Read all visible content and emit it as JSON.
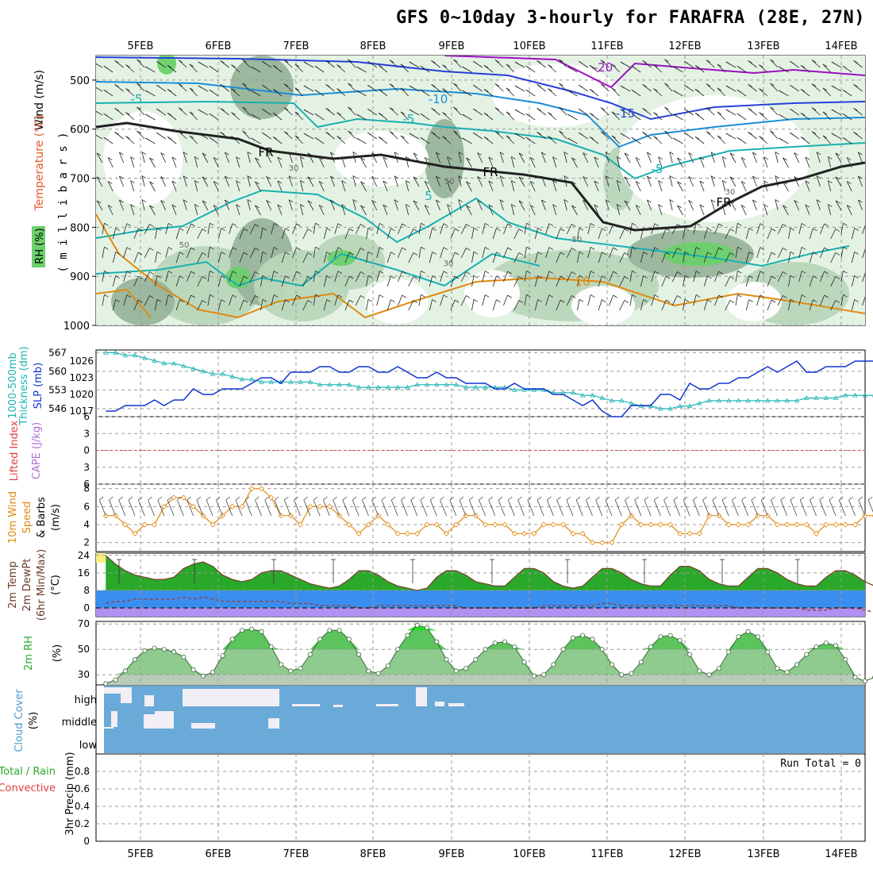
{
  "title": "GFS 0~10day 3-hourly for FARAFRA (28E, 27N)",
  "days": [
    "5FEB",
    "6FEB",
    "7FEB",
    "8FEB",
    "9FEB",
    "10FEB",
    "11FEB",
    "12FEB",
    "13FEB",
    "14FEB"
  ],
  "colors": {
    "rh_light": "#e4f2e4",
    "rh_mid": "#b9d6b9",
    "rh_grey": "#98b49a",
    "rh_green": "#6cd06c",
    "temp_cyan": "#19b0b0",
    "temp_blue": "#2840d8",
    "temp_purple": "#9a10c0",
    "temp_orange": "#e08a10",
    "slp": "#1034d0",
    "thickness": "#20b4b4",
    "wind10": "#e08a10",
    "temp_green": "#2aa82a",
    "temp_blue_band": "#3a8ef0",
    "temp_purple_band": "#b090f0",
    "cloud": "#6aaad8",
    "cloud_gap": "#f1eef6"
  },
  "labels": {
    "upper": [
      "Wind (m/s)",
      "Temperature (°C)",
      "RH (%)",
      "( m i l l i b a r s )"
    ],
    "thickness": [
      "1000-500mb",
      "Thickness (dm)",
      "SLP (mb)"
    ],
    "cape": [
      "Lifted Index",
      "CAPE (J/kg)"
    ],
    "wind10": [
      "10m Wind",
      "Speed",
      "& Barbs",
      "(m/s)"
    ],
    "temp2m": [
      "2m Temp",
      "2m DewPt",
      "(6hr Min/Max)",
      "(°C)"
    ],
    "rh2m": [
      "2m RH",
      "(%)"
    ],
    "cloud": [
      "Cloud Cover",
      "(%)"
    ],
    "precip": [
      "Total / Rain",
      "Convective",
      "3hr Precip (mm)"
    ]
  },
  "run_total": "Run Total = 0",
  "chart_data": [
    {
      "type": "contour-crosssection",
      "title": "Wind / Temperature / RH",
      "ylabel": "millibars",
      "yticks": [
        500,
        600,
        700,
        800,
        900,
        1000
      ],
      "ylim": [
        450,
        1000
      ],
      "temperature_contour_labels": [
        "-20",
        "-15",
        "-10",
        "-5",
        "5",
        "10",
        "FR"
      ],
      "rh_contour_labels": [
        "30",
        "50"
      ]
    },
    {
      "type": "line",
      "title": "1000-500mb Thickness / SLP",
      "thickness_ticks": [
        546,
        553,
        560,
        567
      ],
      "slp_ticks": [
        1017,
        1020,
        1023,
        1026
      ],
      "series": [
        {
          "name": "SLP (mb)",
          "range": [
            1016,
            1028
          ],
          "values": [
            1017,
            1017,
            1018,
            1018,
            1018,
            1019,
            1018,
            1019,
            1019,
            1021,
            1020,
            1020,
            1021,
            1021,
            1021,
            1022,
            1023,
            1023,
            1022,
            1024,
            1024,
            1024,
            1025,
            1025,
            1024,
            1024,
            1025,
            1025,
            1024,
            1024,
            1025,
            1024,
            1023,
            1023,
            1024,
            1023,
            1023,
            1022,
            1022,
            1022,
            1021,
            1021,
            1022,
            1021,
            1021,
            1021,
            1020,
            1020,
            1019,
            1018,
            1019,
            1017,
            1016,
            1016,
            1018,
            1018,
            1018,
            1020,
            1020,
            1019,
            1022,
            1021,
            1021,
            1022,
            1022,
            1023,
            1023,
            1024,
            1025,
            1024,
            1025,
            1026,
            1024,
            1024,
            1025,
            1025,
            1025,
            1026,
            1026,
            1026,
            1027,
            1027,
            1025,
            1025,
            1026
          ]
        },
        {
          "name": "1000-500mb Thickness (dm)",
          "range": [
            543,
            568
          ],
          "values": [
            567,
            567,
            566,
            566,
            565,
            564,
            563,
            563,
            562,
            561,
            560,
            559,
            559,
            558,
            557,
            557,
            556,
            556,
            556,
            556,
            556,
            556,
            555,
            555,
            555,
            555,
            554,
            554,
            554,
            554,
            554,
            554,
            555,
            555,
            555,
            555,
            555,
            554,
            554,
            554,
            554,
            554,
            553,
            553,
            553,
            553,
            552,
            552,
            552,
            551,
            551,
            550,
            549,
            549,
            548,
            547,
            547,
            546,
            546,
            547,
            547,
            548,
            549,
            549,
            549,
            549,
            549,
            549,
            549,
            549,
            549,
            549,
            550,
            550,
            550,
            550,
            551,
            551,
            551,
            551,
            552,
            552,
            552,
            552,
            552
          ]
        }
      ]
    },
    {
      "type": "line",
      "title": "Lifted Index / CAPE",
      "yticks": [
        -6,
        -3,
        0,
        3,
        6
      ],
      "ytick_labels": [
        "6",
        "3",
        "0",
        "3",
        "6"
      ],
      "values": []
    },
    {
      "type": "line",
      "title": "10m Wind Speed (m/s)",
      "yticks": [
        2,
        4,
        6,
        8
      ],
      "ylim": [
        1,
        8.5
      ],
      "values": [
        5,
        5,
        4,
        3,
        4,
        4,
        6,
        7,
        7,
        6,
        5,
        4,
        5,
        6,
        6,
        8,
        8,
        7,
        5,
        5,
        4,
        6,
        6,
        6,
        5,
        4,
        3,
        4,
        5,
        4,
        3,
        3,
        3,
        4,
        4,
        3,
        4,
        5,
        5,
        4,
        4,
        4,
        3,
        3,
        3,
        4,
        4,
        4,
        3,
        3,
        2,
        2,
        2,
        4,
        5,
        4,
        4,
        4,
        4,
        3,
        3,
        3,
        5,
        5,
        4,
        4,
        4,
        5,
        5,
        4,
        4,
        4,
        4,
        3,
        4,
        4,
        4,
        4,
        5,
        5,
        4,
        4,
        4,
        4,
        3
      ]
    },
    {
      "type": "area",
      "title": "2m Temp / 2m DewPt (6hr Min/Max)",
      "yticks": [
        0,
        8,
        16,
        24
      ],
      "ylim": [
        -4,
        25
      ],
      "series": [
        {
          "name": "2m Temp (°C)",
          "values": [
            24,
            20,
            17,
            15,
            14,
            13,
            13,
            14,
            18,
            20,
            21,
            19,
            15,
            13,
            12,
            13,
            16,
            17,
            17,
            15,
            13,
            11,
            10,
            9,
            10,
            13,
            17,
            17,
            15,
            12,
            10,
            9,
            8,
            9,
            14,
            17,
            17,
            15,
            12,
            11,
            10,
            10,
            14,
            18,
            18,
            16,
            12,
            10,
            9,
            10,
            14,
            18,
            18,
            16,
            13,
            11,
            10,
            10,
            15,
            19,
            19,
            17,
            13,
            11,
            10,
            10,
            14,
            18,
            18,
            16,
            13,
            11,
            10,
            10,
            14,
            17,
            17,
            15,
            12,
            10,
            9,
            9,
            9,
            9,
            9
          ]
        },
        {
          "name": "2m DewPt (°C)",
          "values": [
            2,
            3,
            3,
            4,
            4,
            4,
            4,
            4,
            5,
            4,
            5,
            4,
            3,
            3,
            3,
            3,
            3,
            3,
            3,
            2,
            2,
            2,
            1,
            1,
            1,
            1,
            0,
            0,
            1,
            1,
            1,
            1,
            1,
            1,
            1,
            1,
            1,
            0,
            0,
            0,
            0,
            0,
            0,
            0,
            0,
            1,
            1,
            1,
            1,
            1,
            1,
            2,
            2,
            1,
            1,
            1,
            1,
            1,
            1,
            1,
            1,
            1,
            1,
            1,
            1,
            0,
            0,
            0,
            0,
            0,
            0,
            0,
            -1,
            -1,
            -1,
            0,
            0,
            0,
            -1,
            -2,
            -2,
            -1,
            -1,
            0,
            0
          ]
        }
      ]
    },
    {
      "type": "area",
      "title": "2m RH (%)",
      "yticks": [
        30,
        50,
        70
      ],
      "ylim": [
        22,
        72
      ],
      "values": [
        23,
        26,
        33,
        42,
        49,
        51,
        50,
        48,
        44,
        34,
        29,
        32,
        45,
        58,
        65,
        66,
        64,
        52,
        38,
        33,
        35,
        46,
        58,
        65,
        65,
        58,
        46,
        33,
        31,
        37,
        50,
        61,
        69,
        67,
        56,
        42,
        33,
        35,
        42,
        50,
        55,
        56,
        52,
        40,
        29,
        30,
        38,
        50,
        59,
        61,
        58,
        50,
        38,
        30,
        31,
        40,
        52,
        60,
        61,
        57,
        46,
        33,
        30,
        35,
        48,
        60,
        64,
        60,
        48,
        35,
        32,
        38,
        46,
        52,
        55,
        53,
        42,
        28,
        25,
        28,
        40,
        56,
        64,
        67,
        66
      ]
    },
    {
      "type": "bar",
      "title": "Cloud Cover (%)",
      "categories": [
        "high",
        "middle",
        "low"
      ]
    },
    {
      "type": "bar",
      "title": "3hr Precip (mm)",
      "yticks": [
        0,
        0.2,
        0.4,
        0.6,
        0.8
      ],
      "ylim": [
        0,
        1
      ],
      "values": []
    }
  ]
}
